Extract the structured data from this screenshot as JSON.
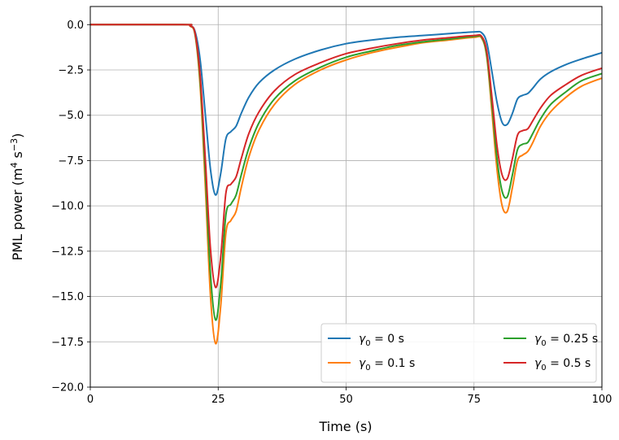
{
  "chart_data": {
    "type": "line",
    "xlabel": "Time (s)",
    "ylabel": "PML power (m",
    "ylabel_sup1": "4",
    "ylabel_mid": " s",
    "ylabel_sup2": "−3",
    "ylabel_end": ")",
    "xlim": [
      0,
      100
    ],
    "ylim": [
      -20,
      1
    ],
    "xticks": [
      0,
      25,
      50,
      75,
      100
    ],
    "xtick_labels": [
      "0",
      "25",
      "50",
      "75",
      "100"
    ],
    "yticks": [
      0,
      -2.5,
      -5,
      -7.5,
      -10,
      -12.5,
      -15,
      -17.5,
      -20
    ],
    "ytick_labels": [
      "0.0",
      "−2.5",
      "−5.0",
      "−7.5",
      "−10.0",
      "−12.5",
      "−15.0",
      "−17.5",
      "−20.0"
    ],
    "grid": true,
    "legend_position": "lower-right",
    "legend_columns": 2,
    "series": [
      {
        "name": "γ0 = 0 s",
        "legend_main": "γ",
        "legend_sub": "0",
        "legend_rest": " = 0 s",
        "color": "#1f77b4",
        "x": [
          0,
          18,
          19.5,
          20.5,
          21.5,
          22.5,
          23.5,
          24.5,
          25.5,
          26.5,
          27.5,
          28.5,
          29.5,
          31,
          33,
          36,
          40,
          45,
          50,
          55,
          60,
          65,
          70,
          75,
          76.5,
          77.5,
          78.5,
          79.5,
          80.5,
          81.5,
          82.5,
          83.5,
          84.5,
          85.5,
          86.5,
          88,
          90,
          93,
          96,
          100
        ],
        "y": [
          0,
          0,
          -0.05,
          -0.4,
          -2.0,
          -5.0,
          -8.0,
          -9.4,
          -8.2,
          -6.3,
          -5.9,
          -5.6,
          -4.9,
          -4.0,
          -3.2,
          -2.5,
          -1.9,
          -1.4,
          -1.05,
          -0.85,
          -0.7,
          -0.6,
          -0.5,
          -0.4,
          -0.45,
          -1.0,
          -2.6,
          -4.3,
          -5.4,
          -5.5,
          -4.9,
          -4.1,
          -3.9,
          -3.8,
          -3.5,
          -3.0,
          -2.6,
          -2.2,
          -1.9,
          -1.55
        ]
      },
      {
        "name": "γ0 = 0.1 s",
        "legend_main": "γ",
        "legend_sub": "0",
        "legend_rest": " = 0.1 s",
        "color": "#ff7f0e",
        "x": [
          0,
          18,
          19.5,
          20.5,
          21.5,
          22.5,
          23.5,
          24.5,
          25.5,
          26.5,
          27.5,
          28.5,
          29.5,
          31,
          33,
          36,
          40,
          45,
          50,
          55,
          60,
          65,
          70,
          75,
          76.5,
          77.5,
          78.5,
          79.5,
          80.5,
          81.5,
          82.5,
          83.5,
          84.5,
          85.5,
          86.5,
          88,
          90,
          93,
          96,
          100
        ],
        "y": [
          0,
          0,
          -0.08,
          -0.6,
          -3.5,
          -9.0,
          -15.0,
          -17.6,
          -15.5,
          -11.5,
          -10.8,
          -10.3,
          -9.0,
          -7.3,
          -5.8,
          -4.4,
          -3.3,
          -2.5,
          -1.95,
          -1.55,
          -1.25,
          -1.0,
          -0.85,
          -0.7,
          -0.75,
          -1.8,
          -4.8,
          -8.0,
          -10.0,
          -10.3,
          -9.0,
          -7.5,
          -7.2,
          -7.0,
          -6.5,
          -5.6,
          -4.8,
          -4.0,
          -3.4,
          -2.95
        ]
      },
      {
        "name": "γ0 = 0.25 s",
        "legend_main": "γ",
        "legend_sub": "0",
        "legend_rest": " = 0.25 s",
        "color": "#2ca02c",
        "x": [
          0,
          18,
          19.5,
          20.5,
          21.5,
          22.5,
          23.5,
          24.5,
          25.5,
          26.5,
          27.5,
          28.5,
          29.5,
          31,
          33,
          36,
          40,
          45,
          50,
          55,
          60,
          65,
          70,
          75,
          76.5,
          77.5,
          78.5,
          79.5,
          80.5,
          81.5,
          82.5,
          83.5,
          84.5,
          85.5,
          86.5,
          88,
          90,
          93,
          96,
          100
        ],
        "y": [
          0,
          0,
          -0.07,
          -0.55,
          -3.2,
          -8.3,
          -13.8,
          -16.3,
          -14.3,
          -10.5,
          -9.9,
          -9.4,
          -8.3,
          -6.8,
          -5.4,
          -4.1,
          -3.1,
          -2.35,
          -1.8,
          -1.45,
          -1.15,
          -0.95,
          -0.8,
          -0.65,
          -0.7,
          -1.7,
          -4.4,
          -7.4,
          -9.2,
          -9.5,
          -8.3,
          -6.9,
          -6.6,
          -6.5,
          -6.0,
          -5.2,
          -4.4,
          -3.7,
          -3.1,
          -2.7
        ]
      },
      {
        "name": "γ0 = 0.5 s",
        "legend_main": "γ",
        "legend_sub": "0",
        "legend_rest": " = 0.5 s",
        "color": "#d62728",
        "x": [
          0,
          18,
          19.5,
          20.5,
          21.5,
          22.5,
          23.5,
          24.5,
          25.5,
          26.5,
          27.5,
          28.5,
          29.5,
          31,
          33,
          36,
          40,
          45,
          50,
          55,
          60,
          65,
          70,
          75,
          76.5,
          77.5,
          78.5,
          79.5,
          80.5,
          81.5,
          82.5,
          83.5,
          84.5,
          85.5,
          86.5,
          88,
          90,
          93,
          96,
          100
        ],
        "y": [
          0,
          0,
          -0.06,
          -0.5,
          -2.9,
          -7.5,
          -12.4,
          -14.5,
          -12.8,
          -9.3,
          -8.8,
          -8.4,
          -7.4,
          -6.0,
          -4.8,
          -3.65,
          -2.75,
          -2.1,
          -1.6,
          -1.3,
          -1.05,
          -0.85,
          -0.72,
          -0.6,
          -0.65,
          -1.5,
          -4.0,
          -6.7,
          -8.3,
          -8.5,
          -7.4,
          -6.1,
          -5.85,
          -5.75,
          -5.3,
          -4.6,
          -3.9,
          -3.3,
          -2.8,
          -2.4
        ]
      }
    ]
  }
}
